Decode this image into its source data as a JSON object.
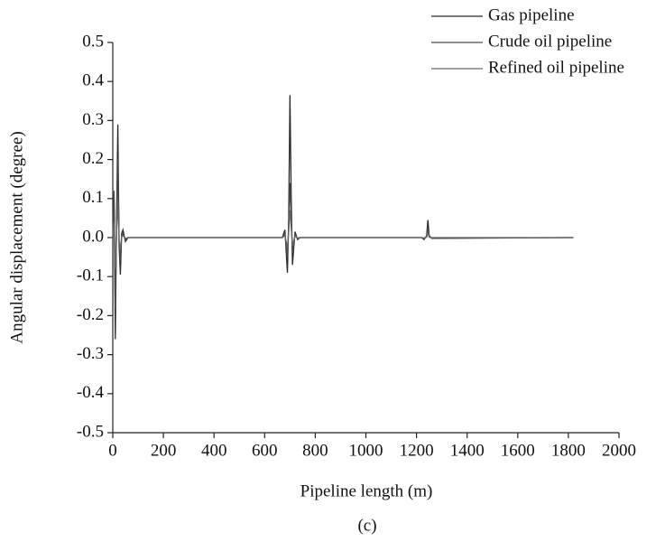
{
  "chart_data": {
    "type": "line",
    "x_label": "Pipeline length (m)",
    "y_label": "Angular displacement (degree)",
    "caption": "(c)",
    "x": [
      0,
      5,
      10,
      15,
      20,
      25,
      30,
      35,
      40,
      50,
      60,
      80,
      660,
      670,
      680,
      690,
      695,
      700,
      705,
      710,
      720,
      730,
      740,
      1220,
      1230,
      1240,
      1245,
      1250,
      1260,
      1820
    ],
    "series": [
      {
        "name": "Gas pipeline",
        "color": "#2a2a2a",
        "values": [
          0,
          0.1,
          -0.26,
          0.05,
          0.29,
          -0.02,
          -0.095,
          0.01,
          0.02,
          -0.01,
          0,
          0,
          0,
          0,
          0.02,
          -0.09,
          0.05,
          0.365,
          0.1,
          -0.07,
          0.015,
          -0.005,
          0,
          0,
          -0.005,
          0.005,
          0.045,
          0.005,
          -0.002,
          0
        ]
      },
      {
        "name": "Crude oil pipeline",
        "color": "#4a4a4a",
        "values": [
          0,
          0.12,
          -0.18,
          0.02,
          0.2,
          -0.01,
          -0.06,
          0.005,
          0.01,
          -0.005,
          0,
          0,
          0,
          0,
          0.01,
          -0.05,
          0.03,
          0.14,
          0.05,
          -0.04,
          0.008,
          -0.003,
          0,
          0,
          -0.003,
          0.003,
          0.025,
          0.003,
          -0.001,
          0
        ]
      },
      {
        "name": "Refined oil pipeline",
        "color": "#666666",
        "values": [
          0,
          0.04,
          -0.08,
          0.01,
          0.09,
          -0.005,
          -0.03,
          0.002,
          0.005,
          -0.002,
          0,
          0,
          0,
          0,
          0.005,
          -0.025,
          0.015,
          0.07,
          0.025,
          -0.02,
          0.004,
          -0.001,
          0,
          0,
          -0.001,
          0.001,
          0.012,
          0.001,
          0,
          0
        ]
      }
    ],
    "xlim": [
      0,
      2000
    ],
    "xticks": [
      0,
      200,
      400,
      600,
      800,
      1000,
      1200,
      1400,
      1600,
      1800,
      2000
    ],
    "ylim": [
      -0.5,
      0.5
    ],
    "yticks": [
      -0.5,
      -0.4,
      -0.3,
      -0.2,
      -0.1,
      {
        "value": 0,
        "label": "0.0"
      },
      0.1,
      0.2,
      0.3,
      0.4,
      0.5
    ],
    "grid": false,
    "legend": "upper right"
  }
}
